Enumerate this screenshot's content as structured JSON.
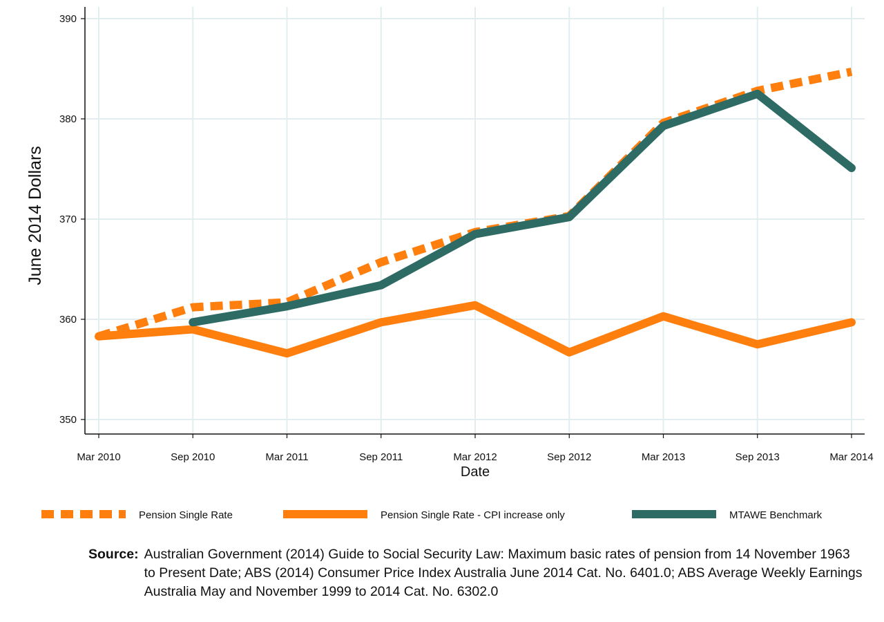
{
  "chart_data": {
    "type": "line",
    "xlabel": "Date",
    "ylabel": "June 2014 Dollars",
    "categories": [
      "Mar 2010",
      "Sep 2010",
      "Mar 2011",
      "Sep 2011",
      "Mar 2012",
      "Sep 2012",
      "Mar 2013",
      "Sep 2013",
      "Mar 2014"
    ],
    "ylim": [
      348.5,
      391
    ],
    "yticks": [
      350,
      360,
      370,
      380,
      390
    ],
    "grid": true,
    "legend_position": "bottom",
    "series": [
      {
        "name": "Pension Single Rate",
        "style": "dashed",
        "color": "#ff7f0e",
        "values": [
          358.3,
          361.2,
          361.7,
          365.7,
          368.7,
          370.3,
          379.6,
          382.8,
          384.7
        ]
      },
      {
        "name": "Pension Single Rate - CPI increase only",
        "style": "solid",
        "color": "#ff7f0e",
        "values": [
          358.3,
          359.0,
          356.6,
          359.7,
          361.4,
          356.7,
          360.3,
          357.5,
          359.7
        ]
      },
      {
        "name": "MTAWE Benchmark",
        "style": "solid",
        "color": "#2e6b64",
        "values": [
          null,
          359.7,
          361.3,
          363.4,
          368.5,
          370.2,
          379.3,
          382.5,
          375.1
        ]
      }
    ]
  },
  "source": {
    "label": "Source:",
    "text": "Australian Government (2014) Guide to Social Security Law: Maximum basic rates of pension from 14 November 1963 to Present Date; ABS (2014) Consumer Price Index Australia June 2014 Cat. No. 6401.0; ABS Average Weekly Earnings Australia May and November 1999 to 2014 Cat. No. 6302.0"
  }
}
